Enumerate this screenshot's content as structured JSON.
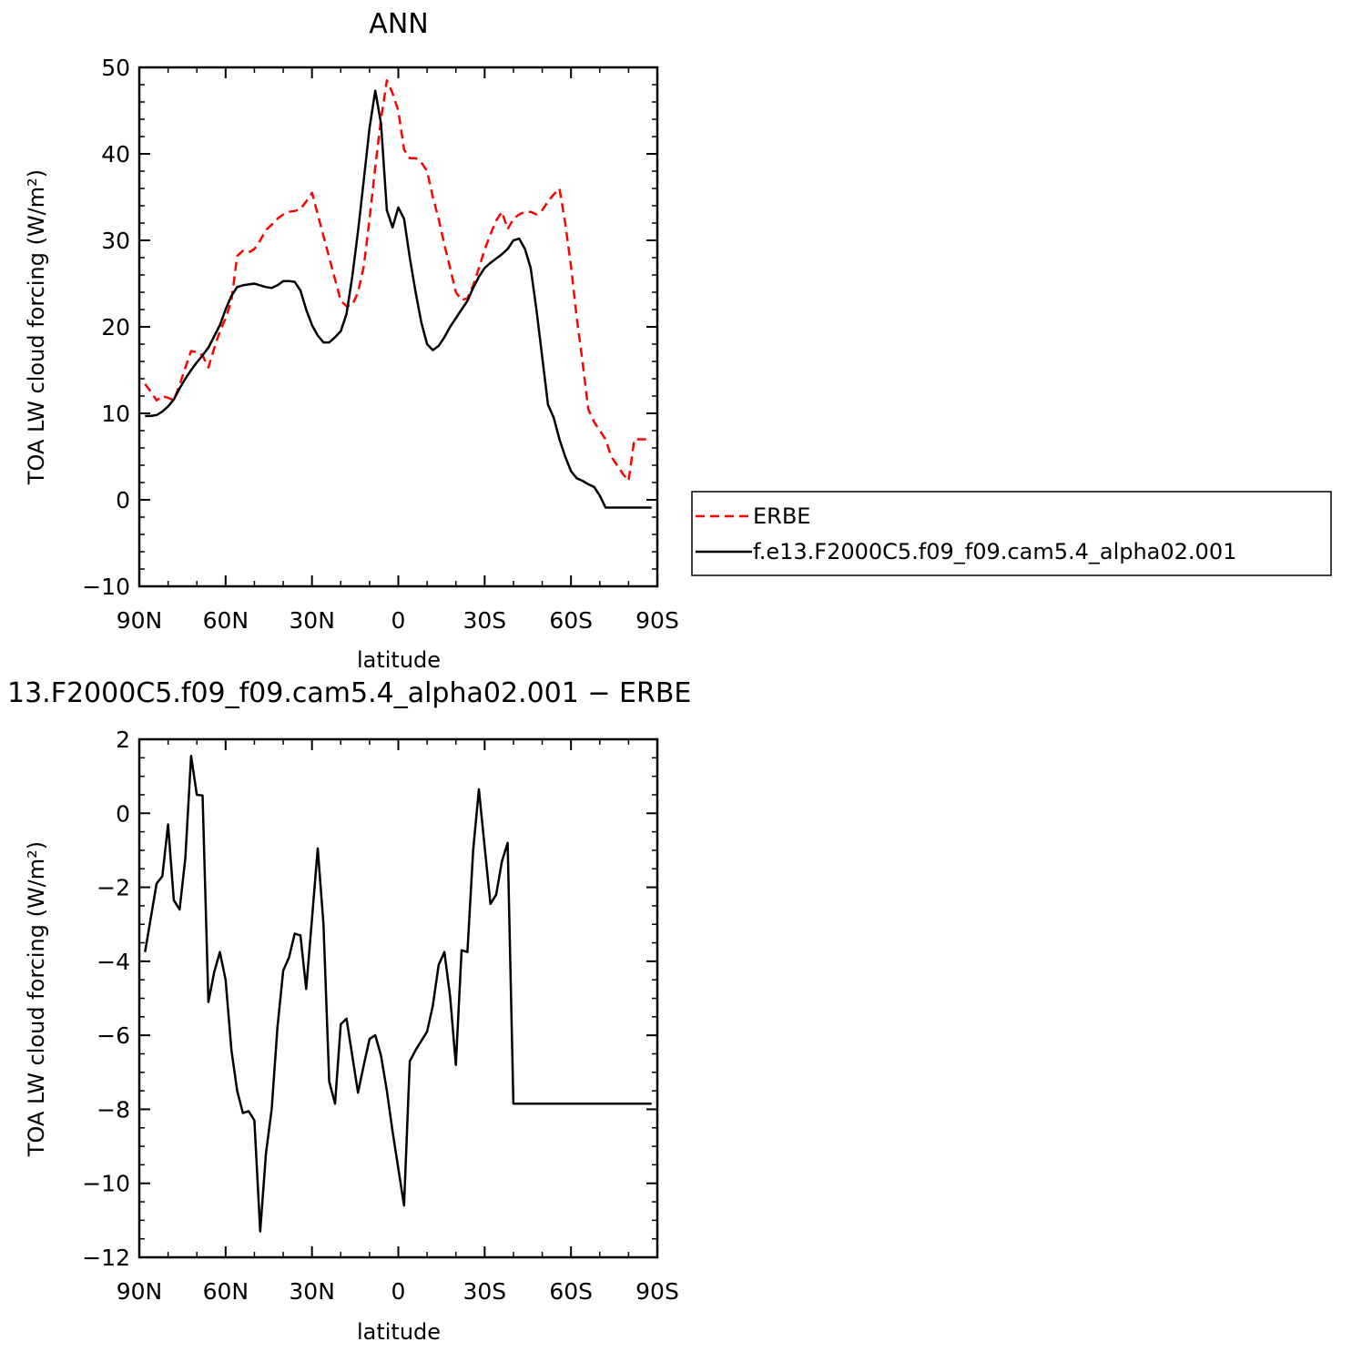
{
  "chart_data": [
    {
      "type": "line",
      "title": "ANN",
      "xlabel": "latitude",
      "ylabel": "TOA LW cloud forcing (W/m²)",
      "xlim": [
        90,
        -90
      ],
      "ylim": [
        -10,
        50
      ],
      "x_ticks": [
        90,
        60,
        30,
        0,
        -30,
        -60,
        -90
      ],
      "x_tick_labels": [
        "90N",
        "60N",
        "30N",
        "0",
        "30S",
        "60S",
        "90S"
      ],
      "y_ticks": [
        -10,
        0,
        10,
        20,
        30,
        40,
        50
      ],
      "y_tick_labels": [
        "−10",
        "0",
        "10",
        "20",
        "30",
        "40",
        "50"
      ],
      "grid": false,
      "legend_position": "right",
      "x": [
        88,
        86,
        84,
        82,
        80,
        78,
        76,
        74,
        72,
        70,
        68,
        66,
        64,
        62,
        60,
        58,
        56,
        54,
        52,
        50,
        48,
        46,
        44,
        42,
        40,
        38,
        36,
        34,
        32,
        30,
        28,
        26,
        24,
        22,
        20,
        18,
        16,
        14,
        12,
        10,
        8,
        6,
        4,
        2,
        0,
        -2,
        -4,
        -6,
        -8,
        -10,
        -12,
        -14,
        -16,
        -18,
        -20,
        -22,
        -24,
        -26,
        -28,
        -30,
        -32,
        -34,
        -36,
        -38,
        -40,
        -42,
        -44,
        -46,
        -48,
        -50,
        -52,
        -54,
        -56,
        -58,
        -60,
        -62,
        -64,
        -66,
        -68,
        -70,
        -72,
        -74,
        -76,
        -78,
        -80,
        -82,
        -84,
        -86,
        -88
      ],
      "series": [
        {
          "name": "ERBE",
          "color": "#ff0000",
          "dash": "dashed",
          "values": [
            13.4,
            12.5,
            11.5,
            12.0,
            11.8,
            11.5,
            13.3,
            15.3,
            17.2,
            17.1,
            16.7,
            15.3,
            17.5,
            19.5,
            21.0,
            23.0,
            28.2,
            28.8,
            28.6,
            29.0,
            30.0,
            31.2,
            31.8,
            32.5,
            33.0,
            33.3,
            33.4,
            33.6,
            34.5,
            35.5,
            33.0,
            30.5,
            28.0,
            25.5,
            23.0,
            22.4,
            22.5,
            24.0,
            27.0,
            32.5,
            38.5,
            44.0,
            48.5,
            47.0,
            45.0,
            40.5,
            39.5,
            39.5,
            39.0,
            38.0,
            35.0,
            32.5,
            29.5,
            26.8,
            24.0,
            23.1,
            23.3,
            24.8,
            26.8,
            28.9,
            30.7,
            32.3,
            33.3,
            31.3,
            32.5,
            33.0,
            33.3,
            33.3,
            33.0,
            33.5,
            34.5,
            35.3,
            36.0,
            32.0,
            27.0,
            21.0,
            16.0,
            10.5,
            9.0,
            8.0,
            7.0,
            5.0,
            4.0,
            3.0,
            2.2,
            7.0,
            7.0,
            7.0,
            7.0
          ]
        },
        {
          "name": "f.e13.F2000C5.f09_f09.cam5.4_alpha02.001",
          "color": "#000000",
          "dash": "solid",
          "values": [
            9.7,
            9.7,
            9.8,
            10.2,
            10.8,
            11.6,
            12.9,
            14.0,
            15.0,
            15.9,
            16.7,
            17.6,
            18.9,
            20.2,
            22.0,
            23.6,
            24.6,
            24.8,
            24.9,
            25.0,
            24.8,
            24.6,
            24.5,
            24.8,
            25.3,
            25.3,
            25.2,
            24.2,
            22.0,
            20.2,
            19.0,
            18.2,
            18.2,
            18.8,
            19.5,
            21.5,
            25.8,
            31.0,
            37.0,
            43.0,
            47.3,
            43.5,
            33.5,
            31.5,
            33.8,
            32.5,
            28.0,
            24.0,
            20.5,
            18.0,
            17.3,
            17.8,
            18.8,
            20.0,
            21.0,
            22.0,
            23.0,
            24.5,
            25.8,
            26.8,
            27.4,
            27.9,
            28.4,
            29.0,
            30.0,
            30.2,
            29.0,
            26.8,
            22.0,
            16.5,
            11.0,
            9.5,
            7.0,
            5.0,
            3.3,
            2.5,
            2.2,
            1.8,
            1.5,
            0.5,
            -0.9,
            -0.9,
            -0.9,
            -0.9,
            -0.9,
            -0.9,
            -0.9,
            -0.9,
            -0.9
          ]
        }
      ]
    },
    {
      "type": "line",
      "title": "13.F2000C5.f09_f09.cam5.4_alpha02.001 − ERBE",
      "xlabel": "latitude",
      "ylabel": "TOA LW cloud forcing (W/m²)",
      "xlim": [
        90,
        -90
      ],
      "ylim": [
        -12,
        2
      ],
      "x_ticks": [
        90,
        60,
        30,
        0,
        -30,
        -60,
        -90
      ],
      "x_tick_labels": [
        "90N",
        "60N",
        "30N",
        "0",
        "30S",
        "60S",
        "90S"
      ],
      "y_ticks": [
        -12,
        -10,
        -8,
        -6,
        -4,
        -2,
        0,
        2
      ],
      "y_tick_labels": [
        "−12",
        "−10",
        "−8",
        "−6",
        "−4",
        "−2",
        "0",
        "2"
      ],
      "grid": false,
      "series": [
        {
          "color": "#000000",
          "dash": "solid",
          "x": [
            88,
            84,
            82,
            80,
            78,
            76,
            74,
            72,
            70,
            68,
            66,
            64,
            62,
            60,
            58,
            56,
            54,
            52,
            50,
            48,
            46,
            44,
            42,
            40,
            38,
            36,
            34,
            32,
            30,
            28,
            26,
            24,
            22,
            20,
            18,
            16,
            14,
            12,
            10,
            8,
            6,
            4,
            2,
            0,
            -2,
            -4,
            -6,
            -8,
            -10,
            -12,
            -14,
            -16,
            -18,
            -20,
            -22,
            -24,
            -26,
            -28,
            -30,
            -32,
            -34,
            -36,
            -38,
            -40,
            -42,
            -44,
            -46,
            -48,
            -50,
            -52,
            -54,
            -56,
            -58,
            -60,
            -62,
            -64,
            -66,
            -68,
            -70,
            -72,
            -74,
            -76,
            -78,
            -80,
            -82,
            -84,
            -86,
            -88
          ],
          "values": [
            -3.75,
            -1.9,
            -1.7,
            -0.3,
            -2.35,
            -2.6,
            -1.2,
            1.55,
            0.5,
            0.48,
            -5.1,
            -4.3,
            -3.75,
            -4.5,
            -6.4,
            -7.5,
            -8.1,
            -8.05,
            -8.3,
            -11.3,
            -9.2,
            -8.0,
            -5.8,
            -4.25,
            -3.9,
            -3.25,
            -3.3,
            -4.75,
            -2.85,
            -0.95,
            -3.0,
            -7.25,
            -7.85,
            -5.7,
            -5.55,
            -6.55,
            -7.55,
            -6.8,
            -6.1,
            -6.0,
            -6.55,
            -7.5,
            -8.6,
            -9.6,
            -10.6,
            -6.7,
            -6.4,
            -6.15,
            -5.9,
            -5.2,
            -4.1,
            -3.75,
            -4.95,
            -6.8,
            -3.7,
            -3.75,
            -1.0,
            0.65,
            -0.9,
            -2.45,
            -2.2,
            -1.3,
            -0.8,
            -7.85,
            -7.85,
            -7.85,
            -7.85,
            -7.85,
            -7.85,
            -7.85,
            -7.85,
            -7.85,
            -7.85,
            -7.85,
            -7.85,
            -7.85,
            -7.85,
            -7.85,
            -7.85,
            -7.85,
            -7.85,
            -7.85,
            -7.85,
            -7.85,
            -7.85,
            -7.85,
            -7.85,
            -7.85
          ]
        }
      ]
    }
  ]
}
